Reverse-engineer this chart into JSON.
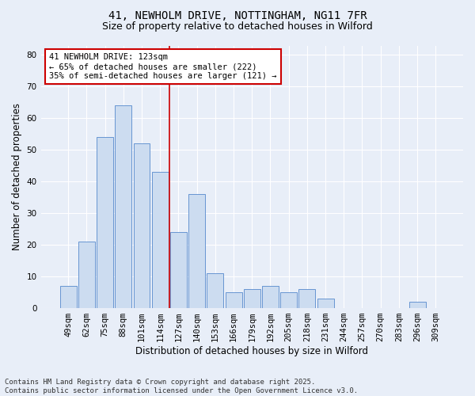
{
  "title_line1": "41, NEWHOLM DRIVE, NOTTINGHAM, NG11 7FR",
  "title_line2": "Size of property relative to detached houses in Wilford",
  "xlabel": "Distribution of detached houses by size in Wilford",
  "ylabel": "Number of detached properties",
  "bar_labels": [
    "49sqm",
    "62sqm",
    "75sqm",
    "88sqm",
    "101sqm",
    "114sqm",
    "127sqm",
    "140sqm",
    "153sqm",
    "166sqm",
    "179sqm",
    "192sqm",
    "205sqm",
    "218sqm",
    "231sqm",
    "244sqm",
    "257sqm",
    "270sqm",
    "283sqm",
    "296sqm",
    "309sqm"
  ],
  "bar_values": [
    7,
    21,
    54,
    64,
    52,
    43,
    24,
    36,
    11,
    5,
    6,
    7,
    5,
    6,
    3,
    0,
    0,
    0,
    0,
    2,
    0
  ],
  "bar_color": "#ccdcf0",
  "bar_edge_color": "#5588cc",
  "bg_color": "#e8eef8",
  "grid_color": "#ffffff",
  "vline_x": 5.5,
  "vline_color": "#cc0000",
  "annotation_text": "41 NEWHOLM DRIVE: 123sqm\n← 65% of detached houses are smaller (222)\n35% of semi-detached houses are larger (121) →",
  "annotation_box_color": "#ffffff",
  "annotation_box_edge": "#cc0000",
  "ylim": [
    0,
    83
  ],
  "yticks": [
    0,
    10,
    20,
    30,
    40,
    50,
    60,
    70,
    80
  ],
  "footnote": "Contains HM Land Registry data © Crown copyright and database right 2025.\nContains public sector information licensed under the Open Government Licence v3.0.",
  "title_fontsize": 10,
  "subtitle_fontsize": 9,
  "axis_label_fontsize": 8.5,
  "tick_fontsize": 7.5,
  "annot_fontsize": 7.5,
  "footnote_fontsize": 6.5
}
